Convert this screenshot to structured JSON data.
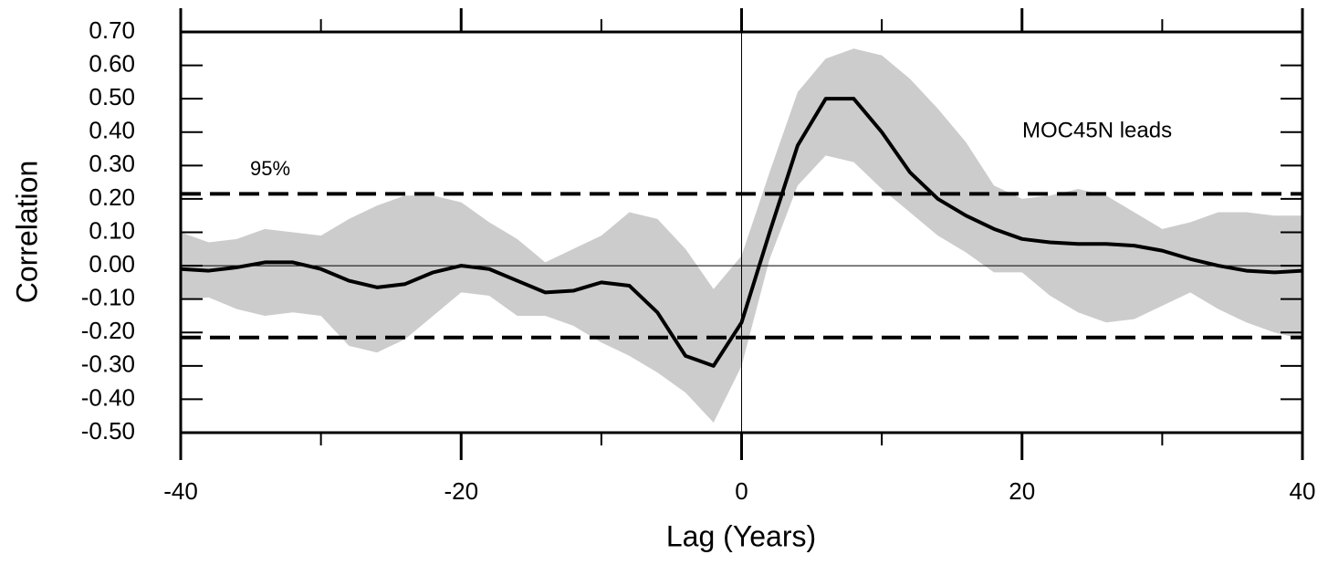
{
  "chart_data": {
    "type": "line",
    "xlabel": "Lag (Years)",
    "ylabel": "Correlation",
    "xlim": [
      -40,
      40
    ],
    "ylim": [
      -0.5,
      0.7
    ],
    "xticks": [
      -40,
      -20,
      0,
      20,
      40
    ],
    "xminorticks": [
      -30,
      -10,
      10,
      30
    ],
    "yticks": [
      {
        "value": 0.7,
        "label": "0.70"
      },
      {
        "value": 0.6,
        "label": "0.60"
      },
      {
        "value": 0.5,
        "label": "0.50"
      },
      {
        "value": 0.4,
        "label": "0.40"
      },
      {
        "value": 0.3,
        "label": "0.30"
      },
      {
        "value": 0.2,
        "label": "0.20"
      },
      {
        "value": 0.1,
        "label": "0.10"
      },
      {
        "value": 0,
        "label": "0.00"
      },
      {
        "value": -0.1,
        "label": "-0.10"
      },
      {
        "value": -0.2,
        "label": "-0.20"
      },
      {
        "value": -0.3,
        "label": "-0.30"
      },
      {
        "value": -0.4,
        "label": "-0.40"
      },
      {
        "value": -0.5,
        "label": "-0.50"
      }
    ],
    "x": [
      -40,
      -38,
      -36,
      -34,
      -32,
      -30,
      -28,
      -26,
      -24,
      -22,
      -20,
      -18,
      -16,
      -14,
      -12,
      -10,
      -8,
      -6,
      -4,
      -2,
      0,
      2,
      4,
      6,
      8,
      10,
      12,
      14,
      16,
      18,
      20,
      22,
      24,
      26,
      28,
      30,
      32,
      34,
      36,
      38,
      40
    ],
    "band": {
      "color": "#cccccc",
      "upper": [
        0.1,
        0.07,
        0.08,
        0.11,
        0.1,
        0.09,
        0.14,
        0.18,
        0.21,
        0.21,
        0.19,
        0.13,
        0.08,
        0.01,
        0.05,
        0.09,
        0.16,
        0.14,
        0.05,
        -0.07,
        0.03,
        0.28,
        0.52,
        0.62,
        0.65,
        0.63,
        0.56,
        0.47,
        0.37,
        0.24,
        0.2,
        0.21,
        0.23,
        0.21,
        0.16,
        0.11,
        0.13,
        0.16,
        0.16,
        0.15,
        0.15
      ],
      "lower": [
        -0.1,
        -0.095,
        -0.13,
        -0.15,
        -0.14,
        -0.15,
        -0.24,
        -0.26,
        -0.22,
        -0.15,
        -0.08,
        -0.09,
        -0.15,
        -0.15,
        -0.18,
        -0.23,
        -0.27,
        -0.32,
        -0.38,
        -0.47,
        -0.3,
        0.02,
        0.24,
        0.33,
        0.31,
        0.23,
        0.16,
        0.09,
        0.04,
        -0.02,
        -0.02,
        -0.09,
        -0.14,
        -0.17,
        -0.16,
        -0.12,
        -0.08,
        -0.13,
        -0.17,
        -0.2,
        -0.22
      ]
    },
    "series": [
      {
        "color": "#000000",
        "values": [
          -0.01,
          -0.015,
          -0.005,
          0.01,
          0.01,
          -0.01,
          -0.045,
          -0.065,
          -0.055,
          -0.02,
          0.0,
          -0.01,
          -0.045,
          -0.08,
          -0.075,
          -0.05,
          -0.06,
          -0.14,
          -0.27,
          -0.3,
          -0.17,
          0.1,
          0.36,
          0.5,
          0.5,
          0.4,
          0.28,
          0.2,
          0.15,
          0.11,
          0.08,
          0.07,
          0.065,
          0.065,
          0.06,
          0.045,
          0.02,
          0.0,
          -0.015,
          -0.02,
          -0.015
        ]
      }
    ],
    "hlines": {
      "values": [
        0.215,
        -0.215
      ],
      "label": "95%"
    },
    "annotation": "MOC45N leads"
  }
}
